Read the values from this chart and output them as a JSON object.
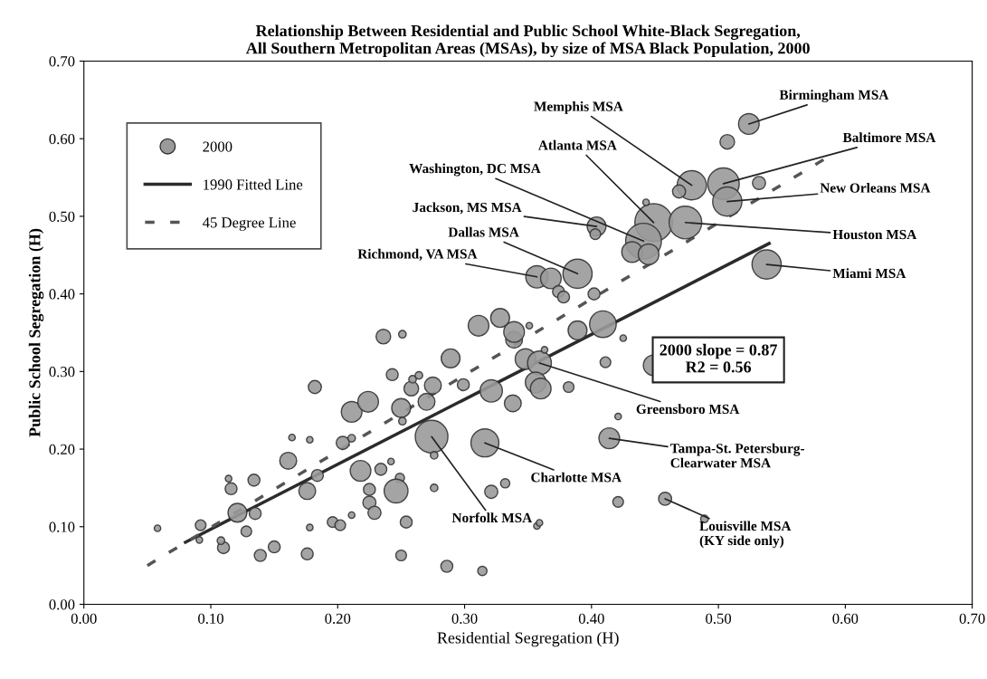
{
  "chart_data": {
    "type": "bubble",
    "title": "Relationship Between Residential and Public School White-Black Segregation,\nAll Southern Metropolitan Areas (MSAs), by size of MSA Black Population, 2000",
    "xlabel": "Residential Segregation (H)",
    "ylabel": "Public School Segregation (H)",
    "xlim": [
      0,
      0.7
    ],
    "ylim": [
      0,
      0.7
    ],
    "xticks": [
      {
        "value": 0,
        "label": "0.00"
      },
      {
        "value": 0.1,
        "label": "0.10"
      },
      {
        "value": 0.2,
        "label": "0.20"
      },
      {
        "value": 0.3,
        "label": "0.30"
      },
      {
        "value": 0.4,
        "label": "0.40"
      },
      {
        "value": 0.5,
        "label": "0.50"
      },
      {
        "value": 0.6,
        "label": "0.60"
      },
      {
        "value": 0.7,
        "label": "0.70"
      }
    ],
    "yticks": [
      {
        "value": 0,
        "label": "0.00"
      },
      {
        "value": 0.1,
        "label": "0.10"
      },
      {
        "value": 0.2,
        "label": "0.20"
      },
      {
        "value": 0.3,
        "label": "0.30"
      },
      {
        "value": 0.4,
        "label": "0.40"
      },
      {
        "value": 0.5,
        "label": "0.50"
      },
      {
        "value": 0.6,
        "label": "0.60"
      },
      {
        "value": 0.7,
        "label": "0.70"
      }
    ],
    "grid": false,
    "legend": "top left",
    "series": [
      {
        "name": "2000",
        "type": "bubble",
        "color": "#9a9a9a",
        "x": [
          0.236,
          0.251,
          0.311,
          0.328,
          0.339,
          0.289,
          0.182,
          0.243,
          0.258,
          0.275,
          0.299,
          0.259,
          0.264,
          0.211,
          0.224,
          0.25,
          0.251,
          0.27,
          0.321,
          0.338,
          0.348,
          0.274,
          0.316,
          0.276,
          0.276,
          0.164,
          0.178,
          0.204,
          0.211,
          0.161,
          0.218,
          0.234,
          0.242,
          0.249,
          0.246,
          0.225,
          0.225,
          0.229,
          0.211,
          0.254,
          0.176,
          0.184,
          0.134,
          0.116,
          0.114,
          0.121,
          0.135,
          0.128,
          0.092,
          0.11,
          0.108,
          0.091,
          0.058,
          0.139,
          0.15,
          0.176,
          0.178,
          0.196,
          0.202,
          0.25,
          0.286,
          0.314,
          0.321,
          0.357,
          0.332,
          0.524,
          0.507,
          0.479,
          0.469,
          0.504,
          0.507,
          0.532,
          0.449,
          0.441,
          0.474,
          0.432,
          0.445,
          0.443,
          0.404,
          0.403,
          0.389,
          0.357,
          0.368,
          0.374,
          0.378,
          0.402,
          0.538,
          0.409,
          0.389,
          0.339,
          0.425,
          0.351,
          0.359,
          0.363,
          0.356,
          0.36,
          0.411,
          0.449,
          0.382,
          0.421,
          0.414,
          0.421,
          0.458,
          0.489,
          0.359
        ],
        "values": [
          0.345,
          0.348,
          0.359,
          0.369,
          0.341,
          0.317,
          0.28,
          0.296,
          0.278,
          0.282,
          0.283,
          0.29,
          0.295,
          0.248,
          0.261,
          0.253,
          0.236,
          0.261,
          0.275,
          0.259,
          0.316,
          0.216,
          0.208,
          0.192,
          0.15,
          0.215,
          0.212,
          0.208,
          0.214,
          0.185,
          0.172,
          0.174,
          0.184,
          0.163,
          0.146,
          0.148,
          0.131,
          0.118,
          0.115,
          0.106,
          0.146,
          0.166,
          0.16,
          0.149,
          0.162,
          0.118,
          0.117,
          0.094,
          0.102,
          0.073,
          0.082,
          0.083,
          0.098,
          0.063,
          0.074,
          0.065,
          0.099,
          0.106,
          0.102,
          0.063,
          0.049,
          0.043,
          0.145,
          0.101,
          0.156,
          0.619,
          0.596,
          0.54,
          0.532,
          0.542,
          0.519,
          0.543,
          0.492,
          0.468,
          0.492,
          0.454,
          0.451,
          0.518,
          0.487,
          0.477,
          0.426,
          0.422,
          0.42,
          0.403,
          0.396,
          0.4,
          0.438,
          0.361,
          0.353,
          0.351,
          0.343,
          0.359,
          0.311,
          0.328,
          0.286,
          0.278,
          0.312,
          0.308,
          0.28,
          0.242,
          0.214,
          0.132,
          0.136,
          0.11,
          0.105
        ],
        "sizes": [
          0.15,
          0.04,
          0.3,
          0.25,
          0.2,
          0.25,
          0.12,
          0.1,
          0.15,
          0.2,
          0.1,
          0.04,
          0.04,
          0.3,
          0.3,
          0.25,
          0.04,
          0.2,
          0.35,
          0.2,
          0.3,
          0.75,
          0.55,
          0.04,
          0.04,
          0.03,
          0.03,
          0.12,
          0.04,
          0.2,
          0.3,
          0.1,
          0.03,
          0.06,
          0.4,
          0.1,
          0.12,
          0.12,
          0.03,
          0.1,
          0.2,
          0.1,
          0.1,
          0.1,
          0.03,
          0.25,
          0.1,
          0.08,
          0.08,
          0.1,
          0.04,
          0.03,
          0.03,
          0.1,
          0.1,
          0.1,
          0.03,
          0.08,
          0.08,
          0.08,
          0.1,
          0.06,
          0.12,
          0.03,
          0.06,
          0.3,
          0.15,
          0.6,
          0.12,
          0.7,
          0.6,
          0.12,
          1.0,
          0.9,
          0.75,
          0.3,
          0.3,
          0.03,
          0.25,
          0.08,
          0.6,
          0.35,
          0.3,
          0.1,
          0.1,
          0.1,
          0.6,
          0.5,
          0.25,
          0.3,
          0.03,
          0.03,
          0.4,
          0.03,
          0.3,
          0.3,
          0.08,
          0.3,
          0.08,
          0.03,
          0.3,
          0.08,
          0.12,
          0.04,
          0.03
        ]
      },
      {
        "name": "1990 Fitted Line",
        "type": "line",
        "color": "#2b2b2b",
        "line_style": "solid",
        "marker": "none",
        "x": [
          0.08,
          0.54
        ],
        "values": [
          0.08,
          0.465
        ]
      },
      {
        "name": "45 Degree Line",
        "type": "line",
        "color": "#555555",
        "line_style": "dashed",
        "marker": "none",
        "x": [
          0.05,
          0.59
        ],
        "values": [
          0.05,
          0.58
        ]
      }
    ],
    "annotations": [
      {
        "text": "Birmingham MSA",
        "x": 0.524,
        "y": 0.619
      },
      {
        "text": "Memphis MSA",
        "x": 0.479,
        "y": 0.54
      },
      {
        "text": "Atlanta MSA",
        "x": 0.449,
        "y": 0.492
      },
      {
        "text": "Washington, DC MSA",
        "x": 0.441,
        "y": 0.468
      },
      {
        "text": "Jackson, MS MSA",
        "x": 0.404,
        "y": 0.487
      },
      {
        "text": "Dallas MSA",
        "x": 0.389,
        "y": 0.426
      },
      {
        "text": "Richmond, VA MSA",
        "x": 0.357,
        "y": 0.422
      },
      {
        "text": "Baltimore MSA",
        "x": 0.504,
        "y": 0.542
      },
      {
        "text": "New Orleans MSA",
        "x": 0.507,
        "y": 0.519
      },
      {
        "text": "Houston MSA",
        "x": 0.474,
        "y": 0.492
      },
      {
        "text": "Miami MSA",
        "x": 0.538,
        "y": 0.438
      },
      {
        "text": "Greensboro MSA",
        "x": 0.359,
        "y": 0.311
      },
      {
        "text": "Tampa-St. Petersburg-\nClearwater MSA",
        "x": 0.414,
        "y": 0.214
      },
      {
        "text": "Charlotte MSA",
        "x": 0.316,
        "y": 0.208
      },
      {
        "text": "Norfolk MSA",
        "x": 0.274,
        "y": 0.216
      },
      {
        "text": "Louisville MSA\n(KY side only)",
        "x": 0.458,
        "y": 0.136
      },
      "2000 slope = 0.87\nR2 = 0.56"
    ]
  }
}
